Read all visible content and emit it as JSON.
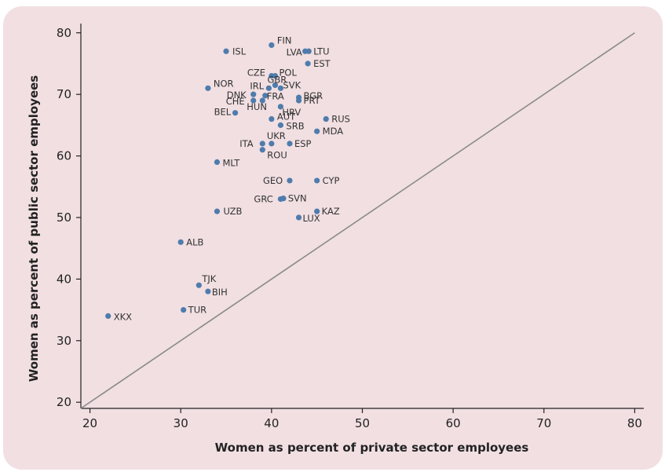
{
  "colors": {
    "panel_background": "#f1dfe2",
    "point": "#4f7cac",
    "diagonal": "#8a8a8a",
    "axis": "#222222"
  },
  "chart_data": {
    "type": "scatter",
    "title": "",
    "xlabel": "Women as percent of private sector employees",
    "ylabel": "Women as percent of public sector employees",
    "xlim": [
      19,
      81
    ],
    "ylim": [
      19,
      81.5
    ],
    "x_ticks": [
      20,
      30,
      40,
      50,
      60,
      70,
      80
    ],
    "y_ticks": [
      20,
      30,
      40,
      50,
      60,
      70,
      80
    ],
    "reference_line": {
      "type": "diagonal",
      "from": [
        19,
        19
      ],
      "to": [
        80,
        80
      ]
    },
    "grid": false,
    "points": [
      {
        "label": "FIN",
        "x": 40,
        "y": 78
      },
      {
        "label": "ISL",
        "x": 35,
        "y": 77
      },
      {
        "label": "LVA",
        "x": 43.7,
        "y": 77
      },
      {
        "label": "LTU",
        "x": 44.1,
        "y": 77
      },
      {
        "label": "EST",
        "x": 44,
        "y": 75
      },
      {
        "label": "CZE",
        "x": 40,
        "y": 73
      },
      {
        "label": "POL",
        "x": 40.4,
        "y": 73
      },
      {
        "label": "NOR",
        "x": 33,
        "y": 71
      },
      {
        "label": "GBR",
        "x": 40.4,
        "y": 71.5
      },
      {
        "label": "IRL",
        "x": 39.7,
        "y": 71
      },
      {
        "label": "SVK",
        "x": 41,
        "y": 71
      },
      {
        "label": "DNK",
        "x": 38,
        "y": 70
      },
      {
        "label": "FRA",
        "x": 39.3,
        "y": 69.8
      },
      {
        "label": "BGR",
        "x": 43,
        "y": 69.5
      },
      {
        "label": "CHE",
        "x": 38,
        "y": 69
      },
      {
        "label": "HUN",
        "x": 39,
        "y": 69
      },
      {
        "label": "PRT",
        "x": 43,
        "y": 69
      },
      {
        "label": "HRV",
        "x": 41,
        "y": 68
      },
      {
        "label": "BEL",
        "x": 36,
        "y": 67
      },
      {
        "label": "AUT",
        "x": 40,
        "y": 66
      },
      {
        "label": "RUS",
        "x": 46,
        "y": 66
      },
      {
        "label": "SRB",
        "x": 41,
        "y": 65
      },
      {
        "label": "MDA",
        "x": 45,
        "y": 64
      },
      {
        "label": "ITA",
        "x": 39,
        "y": 62
      },
      {
        "label": "UKR",
        "x": 40,
        "y": 62
      },
      {
        "label": "ESP",
        "x": 42,
        "y": 62
      },
      {
        "label": "ROU",
        "x": 39,
        "y": 61
      },
      {
        "label": "MLT",
        "x": 34,
        "y": 59
      },
      {
        "label": "GEO",
        "x": 42,
        "y": 56
      },
      {
        "label": "CYP",
        "x": 45,
        "y": 56
      },
      {
        "label": "GRC",
        "x": 41,
        "y": 53
      },
      {
        "label": "SVN",
        "x": 41.3,
        "y": 53.1
      },
      {
        "label": "UZB",
        "x": 34,
        "y": 51
      },
      {
        "label": "KAZ",
        "x": 45,
        "y": 51
      },
      {
        "label": "LUX",
        "x": 43,
        "y": 50
      },
      {
        "label": "ALB",
        "x": 30,
        "y": 46
      },
      {
        "label": "TJK",
        "x": 32,
        "y": 39
      },
      {
        "label": "BIH",
        "x": 33,
        "y": 38
      },
      {
        "label": "TUR",
        "x": 30.3,
        "y": 35
      },
      {
        "label": "XKX",
        "x": 22,
        "y": 34
      }
    ]
  }
}
